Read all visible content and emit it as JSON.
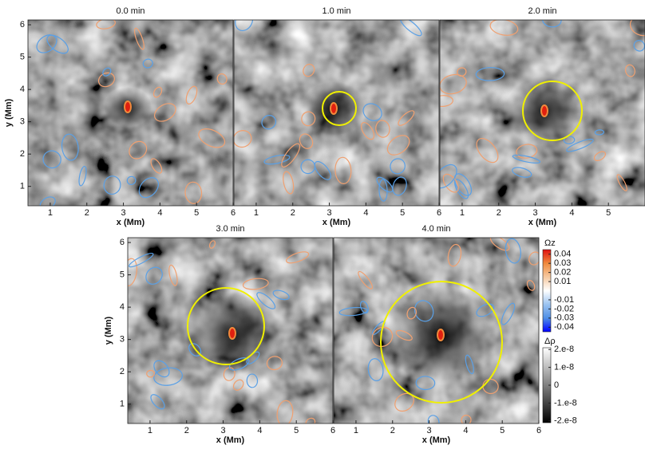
{
  "chart_data": [
    {
      "type": "heatmap",
      "title": "0.0 min",
      "x_label": "x (Mm)",
      "y_label": "y (Mm)",
      "xlim": [
        0.39,
        6
      ],
      "ylim": [
        0.4,
        6.15
      ],
      "xticks": [
        1,
        2,
        3,
        4,
        5,
        6
      ],
      "yticks": [
        1,
        2,
        3,
        4,
        5,
        6
      ]
    },
    {
      "type": "heatmap",
      "title": "1.0 min",
      "x_label": "x (Mm)",
      "xlim": [
        0.39,
        6
      ],
      "ylim": [
        0.4,
        6.15
      ],
      "xticks": [
        1,
        2,
        3,
        4,
        5,
        6
      ]
    },
    {
      "type": "heatmap",
      "title": "2.0 min",
      "x_label": "x (Mm)",
      "xlim": [
        0.39,
        6
      ],
      "ylim": [
        0.4,
        6.15
      ],
      "xticks": [
        1,
        2,
        3,
        4,
        5
      ]
    },
    {
      "type": "heatmap",
      "title": "3.0 min",
      "x_label": "x (Mm)",
      "y_label": "y (Mm)",
      "xlim": [
        0.39,
        6
      ],
      "ylim": [
        0.4,
        6.15
      ],
      "xticks": [
        1,
        2,
        3,
        4,
        5,
        6
      ],
      "yticks": [
        1,
        2,
        3,
        4,
        5,
        6
      ]
    },
    {
      "type": "heatmap",
      "title": "4.0 min",
      "x_label": "x (Mm)",
      "xlim": [
        0.39,
        6
      ],
      "ylim": [
        0.4,
        6.15
      ],
      "xticks": [
        1,
        2,
        3,
        4,
        5,
        6
      ]
    },
    {
      "type": "colorbar",
      "label": "Ωz",
      "lim": [
        -0.045,
        0.045
      ],
      "colors": [
        "#0000ff",
        "#4f8fe6",
        "#9cc3f0",
        "#ffffff",
        "#f6c9a0",
        "#f08a3c",
        "#e01010"
      ],
      "ticks": [
        0.04,
        0.03,
        0.02,
        0.01,
        -0.01,
        -0.02,
        -0.03,
        -0.04
      ]
    },
    {
      "type": "colorbar",
      "label": "Δρ",
      "lim": [
        -2.1e-08,
        2.1e-08
      ],
      "colors": [
        "#000000",
        "#ffffff"
      ],
      "ticks": [
        {
          "value": 2e-08,
          "label": "2.e-8"
        },
        {
          "value": 1e-08,
          "label": "1.e-8"
        },
        0,
        {
          "value": -1e-08,
          "label": "-1.e-8"
        },
        {
          "value": -2e-08,
          "label": "-2.e-8"
        }
      ]
    }
  ]
}
